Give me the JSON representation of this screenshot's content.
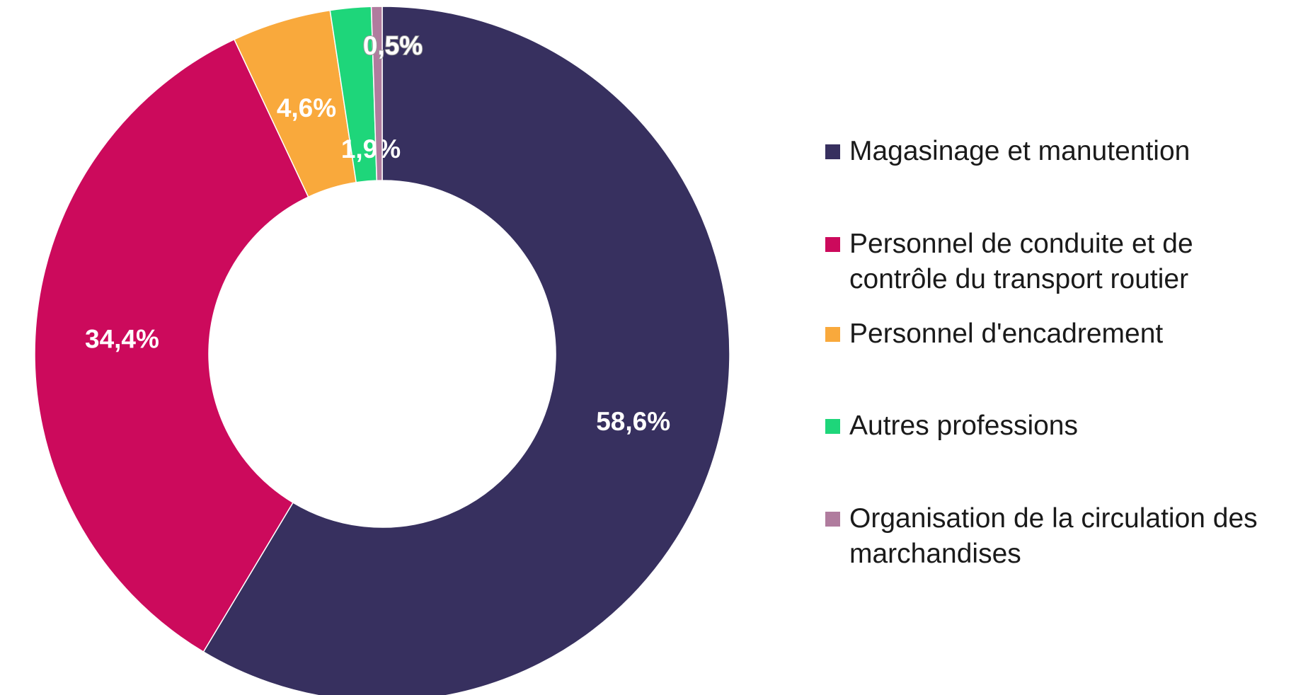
{
  "chart_data": {
    "type": "donut",
    "categories": [
      "Magasinage et manutention",
      "Personnel de conduite et de contrôle du transport routier",
      "Personnel d'encadrement",
      "Autres professions",
      "Organisation de la circulation des marchandises"
    ],
    "values": [
      58.6,
      34.4,
      4.6,
      1.9,
      0.5
    ],
    "value_labels": [
      "58,6%",
      "34,4%",
      "4,6%",
      "1,9%",
      "0,5%"
    ],
    "colors": [
      "#37305f",
      "#cc0a5c",
      "#f9a93c",
      "#1ed67a",
      "#b07c9e"
    ],
    "legend": "right"
  }
}
